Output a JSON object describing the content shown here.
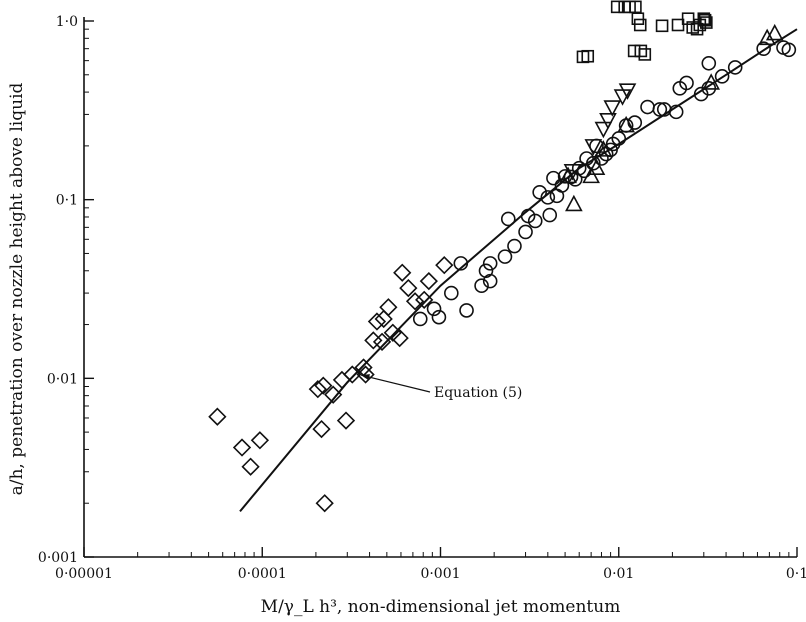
{
  "chart_data": {
    "type": "scatter",
    "title": "",
    "xlabel": "M/γ_L h³, non-dimensional jet momentum",
    "ylabel": "a/h, penetration over nozzle height above liquid",
    "x_scale": "log",
    "y_scale": "log",
    "xlim": [
      1e-05,
      0.1
    ],
    "ylim": [
      0.001,
      1.0
    ],
    "grid": false,
    "x_ticks": [
      {
        "value": 1e-05,
        "label": "0·00001"
      },
      {
        "value": 0.0001,
        "label": "0·0001"
      },
      {
        "value": 0.001,
        "label": "0·001"
      },
      {
        "value": 0.01,
        "label": "0·01"
      },
      {
        "value": 0.1,
        "label": "0·1"
      }
    ],
    "y_ticks": [
      {
        "value": 0.001,
        "label": "0·001"
      },
      {
        "value": 0.01,
        "label": "0·01"
      },
      {
        "value": 0.1,
        "label": "0·1"
      },
      {
        "value": 1.0,
        "label": "1·0"
      }
    ],
    "annotation": {
      "text": "Equation (5)",
      "x": 0.00034,
      "y": 0.0107
    },
    "curve": {
      "name": "Equation (5)",
      "points": [
        [
          7.5e-05,
          0.0018
        ],
        [
          0.0003,
          0.0095
        ],
        [
          0.001,
          0.033
        ],
        [
          0.003,
          0.085
        ],
        [
          0.006,
          0.15
        ],
        [
          0.01,
          0.205
        ],
        [
          0.02,
          0.32
        ],
        [
          0.04,
          0.5
        ],
        [
          0.07,
          0.72
        ],
        [
          0.1,
          0.9
        ]
      ]
    },
    "series": [
      {
        "marker": "diamond",
        "points": [
          [
            5.6e-05,
            0.0061
          ],
          [
            7.7e-05,
            0.0041
          ],
          [
            8.6e-05,
            0.0032
          ],
          [
            9.7e-05,
            0.0045
          ],
          [
            0.000205,
            0.0087
          ],
          [
            0.000215,
            0.0052
          ],
          [
            0.00022,
            0.0091
          ],
          [
            0.000224,
            0.002
          ],
          [
            0.00025,
            0.0081
          ],
          [
            0.00028,
            0.0098
          ],
          [
            0.000295,
            0.0058
          ],
          [
            0.00032,
            0.0105
          ],
          [
            0.00037,
            0.0115
          ],
          [
            0.00038,
            0.0105
          ],
          [
            0.00042,
            0.0163
          ],
          [
            0.00044,
            0.0208
          ],
          [
            0.00047,
            0.016
          ],
          [
            0.00048,
            0.0215
          ],
          [
            0.00051,
            0.025
          ],
          [
            0.00054,
            0.018
          ],
          [
            0.00059,
            0.0168
          ],
          [
            0.00061,
            0.039
          ],
          [
            0.00066,
            0.032
          ],
          [
            0.00072,
            0.027
          ],
          [
            0.00081,
            0.0275
          ],
          [
            0.00086,
            0.035
          ],
          [
            0.00105,
            0.043
          ]
        ]
      },
      {
        "marker": "circle",
        "points": [
          [
            0.00077,
            0.0215
          ],
          [
            0.00092,
            0.0245
          ],
          [
            0.00098,
            0.022
          ],
          [
            0.00115,
            0.03
          ],
          [
            0.0013,
            0.044
          ],
          [
            0.0014,
            0.024
          ],
          [
            0.0017,
            0.033
          ],
          [
            0.0018,
            0.04
          ],
          [
            0.0019,
            0.044
          ],
          [
            0.0019,
            0.035
          ],
          [
            0.0023,
            0.048
          ],
          [
            0.0024,
            0.078
          ],
          [
            0.0026,
            0.055
          ],
          [
            0.003,
            0.066
          ],
          [
            0.0031,
            0.081
          ],
          [
            0.0034,
            0.076
          ],
          [
            0.0036,
            0.11
          ],
          [
            0.004,
            0.103
          ],
          [
            0.0041,
            0.082
          ],
          [
            0.0043,
            0.132
          ],
          [
            0.0045,
            0.105
          ],
          [
            0.0048,
            0.12
          ],
          [
            0.005,
            0.135
          ],
          [
            0.0054,
            0.134
          ],
          [
            0.0057,
            0.13
          ],
          [
            0.006,
            0.15
          ],
          [
            0.0064,
            0.145
          ],
          [
            0.0066,
            0.17
          ],
          [
            0.0072,
            0.16
          ],
          [
            0.0075,
            0.2
          ],
          [
            0.008,
            0.17
          ],
          [
            0.0085,
            0.18
          ],
          [
            0.009,
            0.19
          ],
          [
            0.0093,
            0.205
          ],
          [
            0.01,
            0.22
          ],
          [
            0.011,
            0.26
          ],
          [
            0.0123,
            0.27
          ],
          [
            0.0145,
            0.33
          ],
          [
            0.017,
            0.32
          ],
          [
            0.018,
            0.32
          ],
          [
            0.021,
            0.31
          ],
          [
            0.022,
            0.42
          ],
          [
            0.024,
            0.45
          ],
          [
            0.029,
            0.39
          ],
          [
            0.032,
            0.42
          ],
          [
            0.032,
            0.58
          ],
          [
            0.038,
            0.49
          ],
          [
            0.045,
            0.55
          ],
          [
            0.065,
            0.7
          ],
          [
            0.084,
            0.71
          ],
          [
            0.09,
            0.69
          ]
        ]
      },
      {
        "marker": "triangle-up",
        "points": [
          [
            0.0052,
            0.135
          ],
          [
            0.0056,
            0.094
          ],
          [
            0.007,
            0.135
          ],
          [
            0.0075,
            0.15
          ],
          [
            0.0082,
            0.19
          ],
          [
            0.011,
            0.26
          ],
          [
            0.033,
            0.45
          ],
          [
            0.068,
            0.8
          ],
          [
            0.075,
            0.85
          ]
        ]
      },
      {
        "marker": "triangle-down",
        "points": [
          [
            0.0055,
            0.145
          ],
          [
            0.0072,
            0.2
          ],
          [
            0.0082,
            0.25
          ],
          [
            0.0087,
            0.28
          ],
          [
            0.0092,
            0.33
          ],
          [
            0.0105,
            0.38
          ],
          [
            0.0112,
            0.41
          ]
        ]
      },
      {
        "marker": "square",
        "points": [
          [
            0.0063,
            0.63
          ],
          [
            0.0067,
            0.635
          ],
          [
            0.0098,
            1.2
          ],
          [
            0.0108,
            1.2
          ],
          [
            0.0115,
            1.2
          ],
          [
            0.0122,
            0.68
          ],
          [
            0.0124,
            1.2
          ],
          [
            0.0128,
            1.03
          ],
          [
            0.0132,
            0.95
          ],
          [
            0.0133,
            0.68
          ],
          [
            0.014,
            0.65
          ],
          [
            0.0175,
            0.94
          ],
          [
            0.0215,
            0.95
          ],
          [
            0.0245,
            1.03
          ],
          [
            0.026,
            0.92
          ],
          [
            0.0275,
            0.9
          ],
          [
            0.0285,
            0.95
          ],
          [
            0.03,
            1.03
          ],
          [
            0.0305,
            1.01
          ],
          [
            0.031,
            0.98
          ]
        ]
      }
    ]
  }
}
